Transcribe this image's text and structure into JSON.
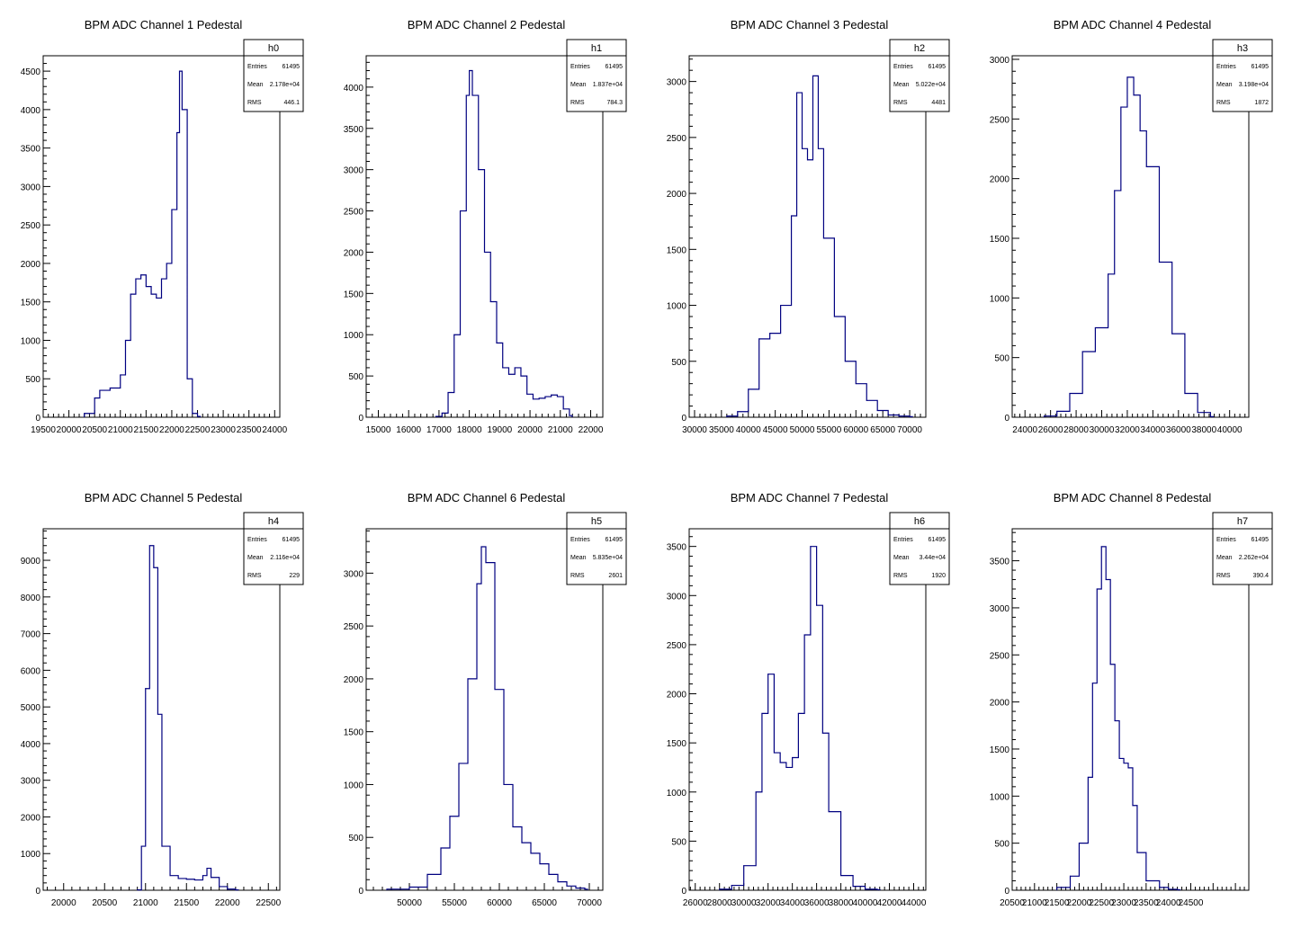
{
  "chart_data": [
    {
      "type": "bar",
      "title": "BPM ADC Channel 1 Pedestal",
      "stats": {
        "name": "h0",
        "entries": "61495",
        "mean": "2.178e+04",
        "rms": "446.1"
      },
      "xlim": [
        19500,
        24100
      ],
      "ylim": [
        0,
        4700
      ],
      "xticks": [
        19500,
        20000,
        20500,
        21000,
        21500,
        22000,
        22500,
        23000,
        23500,
        24000
      ],
      "yticks": [
        0,
        500,
        1000,
        1500,
        2000,
        2500,
        3000,
        3500,
        4000,
        4500
      ],
      "x": [
        20300,
        20500,
        20600,
        20800,
        21000,
        21100,
        21200,
        21300,
        21400,
        21500,
        21600,
        21700,
        21800,
        21900,
        22000,
        22100,
        22150,
        22200,
        22300,
        22400,
        22500
      ],
      "y": [
        50,
        250,
        350,
        380,
        550,
        1000,
        1600,
        1800,
        1850,
        1700,
        1600,
        1550,
        1800,
        2000,
        2700,
        3700,
        4500,
        4000,
        500,
        50,
        10
      ]
    },
    {
      "type": "bar",
      "title": "BPM ADC Channel 2 Pedestal",
      "stats": {
        "name": "h1",
        "entries": "61495",
        "mean": "1.837e+04",
        "rms": "784.3"
      },
      "xlim": [
        14600,
        22400
      ],
      "ylim": [
        0,
        4380
      ],
      "xticks": [
        15000,
        16000,
        17000,
        18000,
        19000,
        20000,
        21000,
        22000
      ],
      "yticks": [
        0,
        500,
        1000,
        1500,
        2000,
        2500,
        3000,
        3500,
        4000
      ],
      "x": [
        16900,
        17100,
        17300,
        17500,
        17700,
        17900,
        18000,
        18100,
        18300,
        18500,
        18700,
        18900,
        19100,
        19300,
        19500,
        19700,
        19900,
        20100,
        20300,
        20500,
        20700,
        20900,
        21100,
        21300
      ],
      "y": [
        10,
        50,
        300,
        1000,
        2500,
        3900,
        4200,
        3900,
        3000,
        2000,
        1400,
        900,
        600,
        520,
        600,
        500,
        280,
        220,
        230,
        250,
        270,
        250,
        100,
        20
      ]
    },
    {
      "type": "bar",
      "title": "BPM ADC Channel 3 Pedestal",
      "stats": {
        "name": "h2",
        "entries": "61495",
        "mean": "5.022e+04",
        "rms": "4481"
      },
      "xlim": [
        29000,
        73000
      ],
      "ylim": [
        0,
        3230
      ],
      "xticks": [
        30000,
        35000,
        40000,
        45000,
        50000,
        55000,
        60000,
        65000,
        70000
      ],
      "yticks": [
        0,
        500,
        1000,
        1500,
        2000,
        2500,
        3000
      ],
      "x": [
        36000,
        38000,
        40000,
        42000,
        44000,
        46000,
        48000,
        49000,
        50000,
        51000,
        52000,
        53000,
        54000,
        56000,
        58000,
        60000,
        62000,
        64000,
        66000,
        68000,
        70000
      ],
      "y": [
        10,
        50,
        250,
        700,
        750,
        1000,
        1800,
        2900,
        2400,
        2300,
        3050,
        2400,
        1600,
        900,
        500,
        300,
        150,
        60,
        20,
        10,
        5
      ]
    },
    {
      "type": "bar",
      "title": "BPM ADC Channel 4 Pedestal",
      "stats": {
        "name": "h3",
        "entries": "61495",
        "mean": "3.198e+04",
        "rms": "1872"
      },
      "xlim": [
        23000,
        41500
      ],
      "ylim": [
        0,
        3030
      ],
      "xticks": [
        24000,
        26000,
        28000,
        30000,
        32000,
        34000,
        36000,
        38000,
        40000
      ],
      "yticks": [
        0,
        500,
        1000,
        1500,
        2000,
        2500,
        3000
      ],
      "x": [
        25500,
        26500,
        27500,
        28500,
        29500,
        30500,
        31000,
        31500,
        32000,
        32500,
        33000,
        33500,
        34500,
        35500,
        36500,
        37500,
        38500
      ],
      "y": [
        10,
        50,
        200,
        550,
        750,
        1200,
        1900,
        2600,
        2850,
        2700,
        2400,
        2100,
        1300,
        700,
        200,
        40,
        5
      ]
    },
    {
      "type": "bar",
      "title": "BPM ADC Channel 5 Pedestal",
      "stats": {
        "name": "h4",
        "entries": "61495",
        "mean": "2.116e+04",
        "rms": "229"
      },
      "xlim": [
        19750,
        22640
      ],
      "ylim": [
        0,
        9860
      ],
      "xticks": [
        20000,
        20500,
        21000,
        21500,
        22000,
        22500
      ],
      "yticks": [
        0,
        1000,
        2000,
        3000,
        4000,
        5000,
        6000,
        7000,
        8000,
        9000
      ],
      "x": [
        20900,
        20950,
        21000,
        21050,
        21100,
        21150,
        21200,
        21300,
        21400,
        21500,
        21600,
        21700,
        21750,
        21800,
        21900,
        22000,
        22100
      ],
      "y": [
        10,
        1200,
        5500,
        9400,
        8800,
        4800,
        1200,
        400,
        320,
        300,
        280,
        400,
        600,
        350,
        100,
        30,
        10
      ]
    },
    {
      "type": "bar",
      "title": "BPM ADC Channel 6 Pedestal",
      "stats": {
        "name": "h5",
        "entries": "61495",
        "mean": "5.835e+04",
        "rms": "2601"
      },
      "xlim": [
        45200,
        71500
      ],
      "ylim": [
        0,
        3420
      ],
      "xticks": [
        50000,
        55000,
        60000,
        65000,
        70000
      ],
      "yticks": [
        0,
        500,
        1000,
        1500,
        2000,
        2500,
        3000
      ],
      "x": [
        47500,
        50000,
        52000,
        53500,
        54500,
        55500,
        56500,
        57500,
        58000,
        58500,
        59500,
        60500,
        61500,
        62500,
        63500,
        64500,
        65500,
        66500,
        67500,
        68500,
        69500
      ],
      "y": [
        10,
        30,
        150,
        400,
        700,
        1200,
        2000,
        2900,
        3250,
        3100,
        1900,
        1000,
        600,
        450,
        350,
        250,
        150,
        80,
        40,
        20,
        10
      ]
    },
    {
      "type": "bar",
      "title": "BPM ADC Channel 7 Pedestal",
      "stats": {
        "name": "h6",
        "entries": "61495",
        "mean": "3.44e+04",
        "rms": "1920"
      },
      "xlim": [
        25500,
        45000
      ],
      "ylim": [
        0,
        3680
      ],
      "xticks": [
        26000,
        28000,
        30000,
        32000,
        34000,
        36000,
        38000,
        40000,
        42000,
        44000
      ],
      "yticks": [
        0,
        500,
        1000,
        1500,
        2000,
        2500,
        3000,
        3500
      ],
      "x": [
        28000,
        29000,
        30000,
        31000,
        31500,
        32000,
        32500,
        33000,
        33500,
        34000,
        34500,
        35000,
        35500,
        36000,
        36500,
        37000,
        38000,
        39000,
        40000,
        41000
      ],
      "y": [
        10,
        50,
        250,
        1000,
        1800,
        2200,
        1400,
        1300,
        1250,
        1350,
        1800,
        2600,
        3500,
        2900,
        1600,
        800,
        150,
        40,
        10,
        5
      ]
    },
    {
      "type": "bar",
      "title": "BPM ADC Channel 8 Pedestal",
      "stats": {
        "name": "h7",
        "entries": "61495",
        "mean": "2.262e+04",
        "rms": "390.4"
      },
      "xlim": [
        20500,
        25800
      ],
      "ylim": [
        0,
        3840
      ],
      "xticks": [
        20500,
        21000,
        21500,
        22000,
        22500,
        23000,
        23500,
        24000,
        24500
      ],
      "yticks": [
        0,
        500,
        1000,
        1500,
        2000,
        2500,
        3000,
        3500
      ],
      "x": [
        21500,
        21800,
        22000,
        22200,
        22300,
        22400,
        22500,
        22600,
        22700,
        22800,
        22900,
        23000,
        23100,
        23200,
        23300,
        23500,
        23800,
        24000,
        24200
      ],
      "y": [
        30,
        150,
        500,
        1200,
        2200,
        3200,
        3650,
        3300,
        2400,
        1800,
        1400,
        1350,
        1300,
        900,
        400,
        100,
        30,
        10,
        5
      ]
    }
  ]
}
